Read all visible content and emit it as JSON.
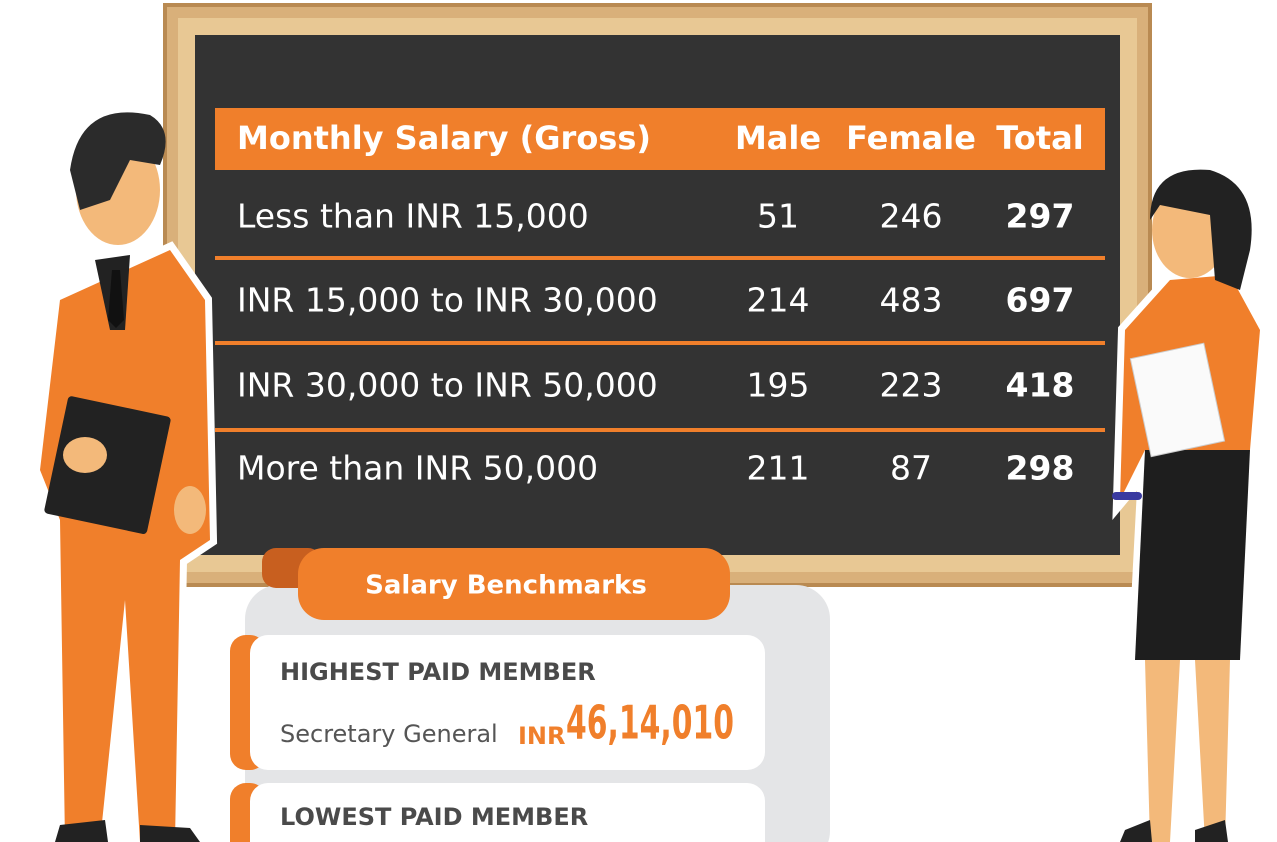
{
  "table": {
    "header": [
      "Monthly Salary (Gross)",
      "Male",
      "Female",
      "Total"
    ],
    "rows": [
      [
        "Less than INR 15,000",
        51,
        246,
        297
      ],
      [
        "INR 15,000 to INR 30,000",
        214,
        483,
        697
      ],
      [
        "INR 30,000 to INR 50,000",
        195,
        223,
        418
      ],
      [
        "More than INR 50,000",
        211,
        87,
        298
      ]
    ]
  },
  "benchmarks": {
    "title": "Salary Benchmarks",
    "items": [
      {
        "label": "HIGHEST PAID MEMBER",
        "role": "Secretary General",
        "currency": "INR",
        "amount": "46,14,010"
      },
      {
        "label": "LOWEST PAID MEMBER"
      }
    ]
  }
}
